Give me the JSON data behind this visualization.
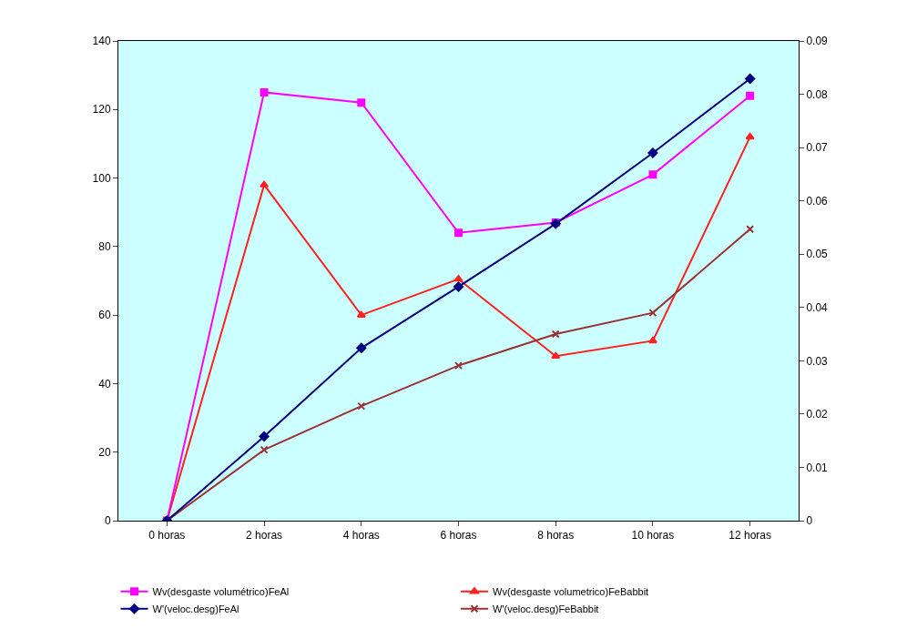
{
  "chart_data": {
    "type": "line",
    "categories": [
      "0 horas",
      "2 horas",
      "4 horas",
      "6 horas",
      "8 horas",
      "10 horas",
      "12 horas"
    ],
    "series": [
      {
        "name": "Wv(desgaste volumétrico)FeAl",
        "color": "#ff00ff",
        "marker": "square",
        "values": [
          0,
          125,
          122,
          84,
          87,
          101,
          124
        ]
      },
      {
        "name": "Wv(desgaste volumetrico)FeBabbit",
        "color": "#ff2020",
        "marker": "triangle",
        "values": [
          0,
          98,
          60,
          70.5,
          48,
          52.5,
          112
        ]
      },
      {
        "name": "W'(veloc.desg)FeAl",
        "color": "#000080",
        "marker": "diamond",
        "axis": "y2",
        "values": [
          0,
          0.0158,
          0.0324,
          0.0439,
          0.0557,
          0.069,
          0.0829
        ]
      },
      {
        "name": "W'(veloc.desg)FeBabbit",
        "color": "#993333",
        "marker": "cross",
        "axis": "y2",
        "values": [
          0,
          0.0133,
          0.0215,
          0.0291,
          0.035,
          0.039,
          0.0547
        ]
      }
    ],
    "ylim": [
      0,
      140
    ],
    "yticks": [
      0,
      20,
      40,
      60,
      80,
      100,
      120,
      140
    ],
    "y2lim": [
      0,
      0.09
    ],
    "y2ticks": [
      0,
      0.01,
      0.02,
      0.03,
      0.04,
      0.05,
      0.06,
      0.07,
      0.08,
      0.09
    ],
    "grid": false,
    "legend": "bottom",
    "line_style": "solid"
  }
}
